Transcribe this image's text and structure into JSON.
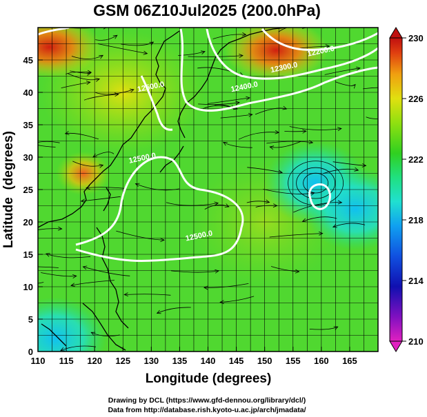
{
  "title": "GSM 06Z10Jul2025 (200.0hPa)",
  "credits": {
    "line1": "Drawing by DCL (https://www.gfd-dennou.org/library/dcl/)",
    "line2": "Data from http://database.rish.kyoto-u.ac.jp/arch/jmadata/"
  },
  "chart_data": {
    "type": "heatmap",
    "title": "GSM 06Z10Jul2025 (200.0hPa)",
    "xlabel": "Longitude (degrees)",
    "ylabel": "Latitude  (degrees)",
    "xlim": [
      110,
      170
    ],
    "ylim": [
      0,
      50
    ],
    "x_ticks": [
      110,
      115,
      120,
      125,
      130,
      135,
      140,
      145,
      150,
      155,
      160,
      165
    ],
    "y_ticks": [
      0,
      5,
      10,
      15,
      20,
      25,
      30,
      35,
      40,
      45
    ],
    "grid": true,
    "colorbar": {
      "ticks": [
        210,
        214,
        218,
        222,
        226,
        230
      ],
      "range": [
        210,
        230
      ],
      "colors": [
        "#e020c0",
        "#8010c0",
        "#1010b0",
        "#1050e0",
        "#10a0f0",
        "#20e0d0",
        "#20e080",
        "#30d020",
        "#90e010",
        "#e0e010",
        "#f0a010",
        "#e04010",
        "#c01010"
      ]
    },
    "contours": [
      {
        "label": "12500.0",
        "lon": 128.5,
        "lat": 29.5
      },
      {
        "label": "12500.0",
        "lon": 130.0,
        "lat": 40.5
      },
      {
        "label": "12500.0",
        "lon": 138.5,
        "lat": 17.5
      },
      {
        "label": "12400.0",
        "lon": 146.5,
        "lat": 40.5
      },
      {
        "label": "12300.0",
        "lon": 153.5,
        "lat": 43.5
      },
      {
        "label": "12200.0",
        "lon": 160.0,
        "lat": 46.0
      }
    ],
    "features": [
      {
        "name": "warm-anomaly",
        "lon": 118.0,
        "lat": 27.5,
        "value": 227
      },
      {
        "name": "warm-anomaly",
        "lon": 112.0,
        "lat": 47.0,
        "value": 230
      },
      {
        "name": "warm-anomaly",
        "lon": 152.0,
        "lat": 46.5,
        "value": 228
      },
      {
        "name": "cold-core",
        "lon": 159.0,
        "lat": 26.0,
        "value": 219
      },
      {
        "name": "cold-core",
        "lon": 166.0,
        "lat": 22.0,
        "value": 218
      },
      {
        "name": "cold-core",
        "lon": 113.0,
        "lat": 2.0,
        "value": 219
      }
    ]
  }
}
